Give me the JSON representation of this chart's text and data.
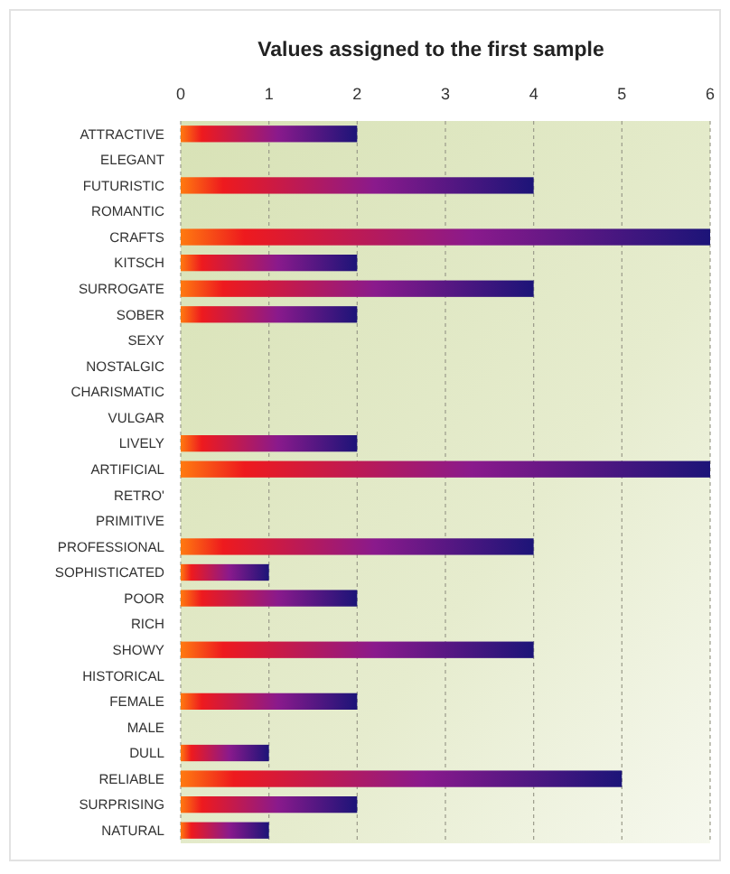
{
  "chart_data": {
    "type": "bar",
    "orientation": "horizontal",
    "title": "Values assigned to the first sample",
    "categories": [
      "ATTRACTIVE",
      "ELEGANT",
      "FUTURISTIC",
      "ROMANTIC",
      "CRAFTS",
      "KITSCH",
      "SURROGATE",
      "SOBER",
      "SEXY",
      "NOSTALGIC",
      "CHARISMATIC",
      "VULGAR",
      "LIVELY",
      "ARTIFICIAL",
      "RETRO'",
      "PRIMITIVE",
      "PROFESSIONAL",
      "SOPHISTICATED",
      "POOR",
      "RICH",
      "SHOWY",
      "HISTORICAL",
      "FEMALE",
      "MALE",
      "DULL",
      "RELIABLE",
      "SURPRISING",
      "NATURAL"
    ],
    "values": [
      2,
      0,
      4,
      0,
      6,
      2,
      4,
      2,
      0,
      0,
      0,
      0,
      2,
      6,
      0,
      0,
      4,
      1,
      2,
      0,
      4,
      0,
      2,
      0,
      1,
      5,
      2,
      1
    ],
    "color": "#1c1478",
    "xlim": [
      0,
      6
    ],
    "xticks": [
      0,
      1,
      2,
      3,
      4,
      5,
      6
    ],
    "grid": "x"
  }
}
